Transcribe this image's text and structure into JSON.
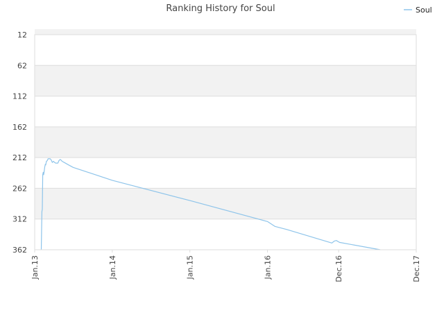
{
  "chart_data": {
    "type": "line",
    "title": "Ranking History for Soul",
    "xlabel": "",
    "ylabel": "",
    "y_inverted": true,
    "ylim": [
      12,
      362
    ],
    "yticks": [
      12,
      62,
      112,
      162,
      212,
      262,
      312,
      362
    ],
    "xticks": [
      "Jan.13",
      "Jan.14",
      "Jan.15",
      "Jan.16",
      "Dec.16",
      "Dec.17"
    ],
    "grid": "alternating horizontal bands",
    "legend_position": "top-right",
    "colors": {
      "series": "#8ec4ea",
      "band": "#f2f2f2",
      "grid": "#dddddd",
      "text": "#444444"
    },
    "series": [
      {
        "name": "Soul",
        "x": [
          "2013-02-01",
          "2013-02-04",
          "2013-02-06",
          "2013-02-08",
          "2013-02-10",
          "2013-02-12",
          "2013-02-14",
          "2013-02-17",
          "2013-02-20",
          "2013-02-22",
          "2013-02-25",
          "2013-03-01",
          "2013-03-05",
          "2013-03-10",
          "2013-03-15",
          "2013-03-20",
          "2013-03-25",
          "2013-03-30",
          "2013-04-05",
          "2013-04-10",
          "2013-04-20",
          "2013-04-25",
          "2013-05-01",
          "2013-05-05",
          "2013-05-10",
          "2013-05-20",
          "2013-06-10",
          "2013-07-01",
          "2014-01-01",
          "2015-01-01",
          "2016-01-01",
          "2016-02-05",
          "2016-04-01",
          "2016-10-30",
          "2016-11-10",
          "2016-11-20",
          "2016-12-05",
          "2017-06-15"
        ],
        "values": [
          362,
          300,
          296,
          240,
          236,
          240,
          236,
          228,
          223,
          224,
          218,
          217,
          214,
          214,
          214,
          216,
          220,
          218,
          220,
          221,
          221,
          217,
          215,
          216,
          218,
          220,
          224,
          228,
          249,
          282,
          316,
          324,
          329,
          351,
          348,
          347,
          350,
          362
        ]
      }
    ]
  }
}
